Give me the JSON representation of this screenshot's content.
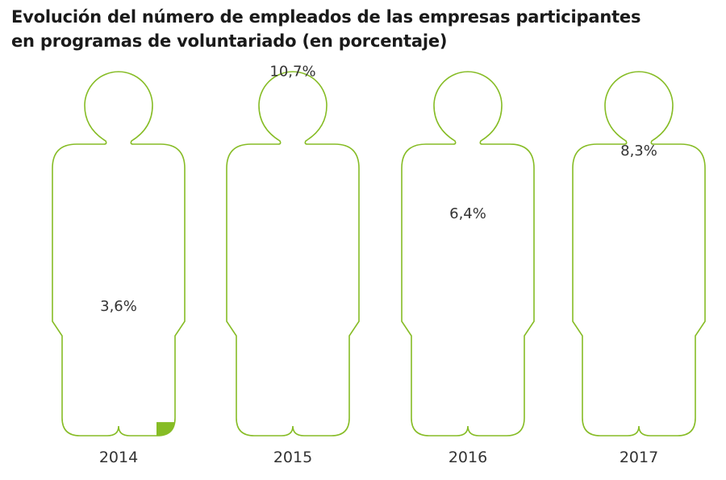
{
  "title_line1": "Evolución del número de empleados de las empresas participantes",
  "title_line2": "en programas de voluntariado (en porcentaje)",
  "colors": {
    "fill": "#86bc25",
    "outline": "#86bc25",
    "text": "#333333"
  },
  "chart_data": {
    "type": "pictogram",
    "title": "Evolución del número de empleados de las empresas participantes en programas de voluntariado (en porcentaje)",
    "categories": [
      "2014",
      "2015",
      "2016",
      "2017"
    ],
    "values": [
      3.6,
      10.7,
      6.4,
      8.3
    ],
    "value_labels": [
      "3,6%",
      "10,7%",
      "6,4%",
      "8,3%"
    ],
    "unit": "%",
    "ylim": [
      0,
      11
    ]
  }
}
